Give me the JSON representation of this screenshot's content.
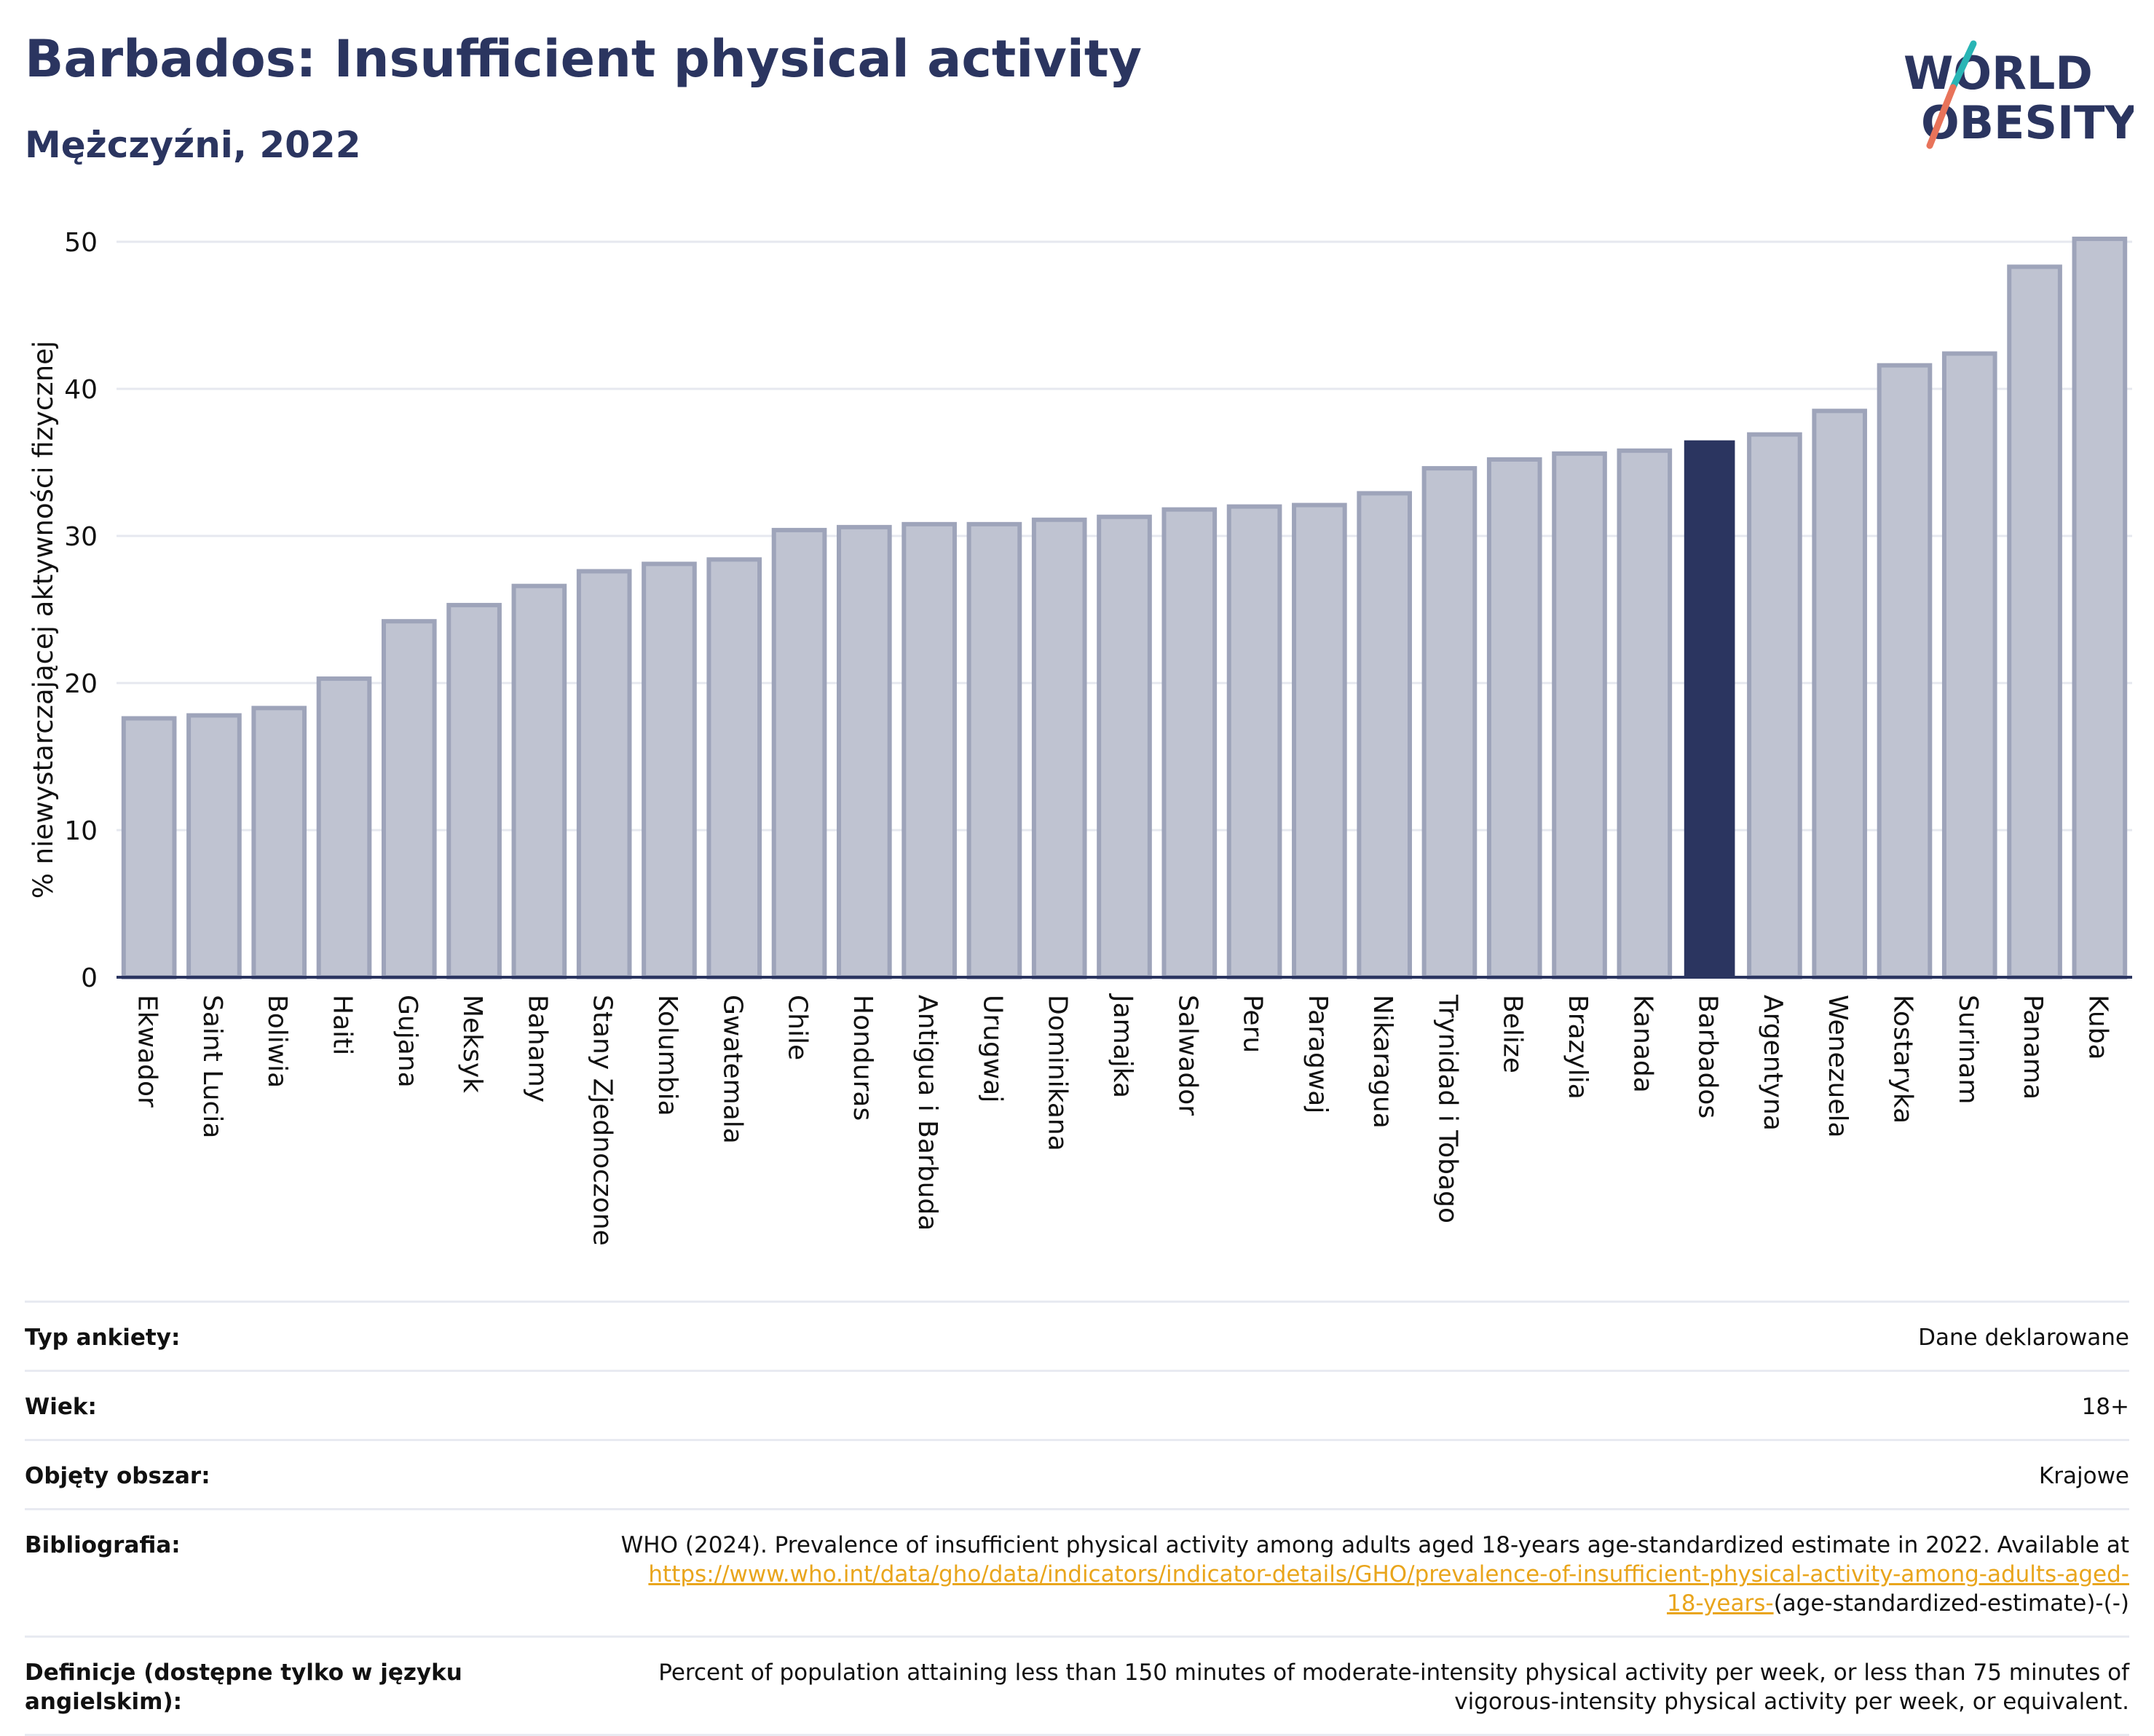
{
  "header": {
    "title": "Barbados: Insufficient physical activity",
    "subtitle": "Mężczyźni, 2022"
  },
  "logo": {
    "line1": "WORLD",
    "line2": "OBESITY",
    "colors": {
      "text": "#2b3560",
      "slash_teal": "#29b5b5",
      "slash_coral": "#e8735a"
    }
  },
  "colors": {
    "highlight_bar": "#2b3560",
    "other_bar_fill": "#bfc3d1",
    "other_bar_stroke": "#9ea4ba",
    "axis": "#2b3560",
    "grid": "#e6e8ef"
  },
  "chart_data": {
    "type": "bar",
    "title": "Barbados: Insufficient physical activity",
    "subtitle": "Mężczyźni, 2022",
    "xlabel": "",
    "ylabel": "% niewystarczającej aktywności fizycznej",
    "ylim": [
      0,
      50
    ],
    "yticks": [
      0,
      10,
      20,
      30,
      40,
      50
    ],
    "grid": true,
    "highlight": "Barbados",
    "categories": [
      "Ekwador",
      "Saint Lucia",
      "Boliwia",
      "Haiti",
      "Gujana",
      "Meksyk",
      "Bahamy",
      "Stany Zjednoczone",
      "Kolumbia",
      "Gwatemala",
      "Chile",
      "Honduras",
      "Antigua i Barbuda",
      "Urugwaj",
      "Dominikana",
      "Jamajka",
      "Salwador",
      "Peru",
      "Paragwaj",
      "Nikaragua",
      "Trynidad i Tobago",
      "Belize",
      "Brazylia",
      "Kanada",
      "Barbados",
      "Argentyna",
      "Wenezuela",
      "Kostaryka",
      "Surinam",
      "Panama",
      "Kuba"
    ],
    "values": [
      17.6,
      17.8,
      18.3,
      20.3,
      24.2,
      25.3,
      26.6,
      27.6,
      28.1,
      28.4,
      30.4,
      30.6,
      30.8,
      30.8,
      31.1,
      31.3,
      31.8,
      32.0,
      32.1,
      32.9,
      34.6,
      35.2,
      35.6,
      35.8,
      36.5,
      36.9,
      38.5,
      41.6,
      42.4,
      48.3,
      50.2
    ]
  },
  "meta": {
    "rows": [
      {
        "label": "Typ ankiety:",
        "value": "Dane deklarowane"
      },
      {
        "label": "Wiek:",
        "value": "18+"
      },
      {
        "label": "Objęty obszar:",
        "value": "Krajowe"
      }
    ],
    "bibliography": {
      "label": "Bibliografia:",
      "text": "WHO (2024). Prevalence of insufficient physical activity among adults aged 18-years age-standardized estimate in 2022. Available at",
      "link_part1": "https://www.who.int/data/gho/data/indicators/indicator-details/GHO/prevalence-of-insufficient-physical-activity-among-adults-aged-",
      "link_part2": "18-years-",
      "suffix": "(age-standardized-estimate)-(-)"
    },
    "definition": {
      "label": "Definicje (dostępne tylko w języku angielskim):",
      "text_line1": "Percent of population attaining less than 150 minutes of moderate-intensity physical activity per week, or less than 75 minutes of",
      "text_line2": "vigorous-intensity physical activity per week, or equivalent."
    }
  }
}
